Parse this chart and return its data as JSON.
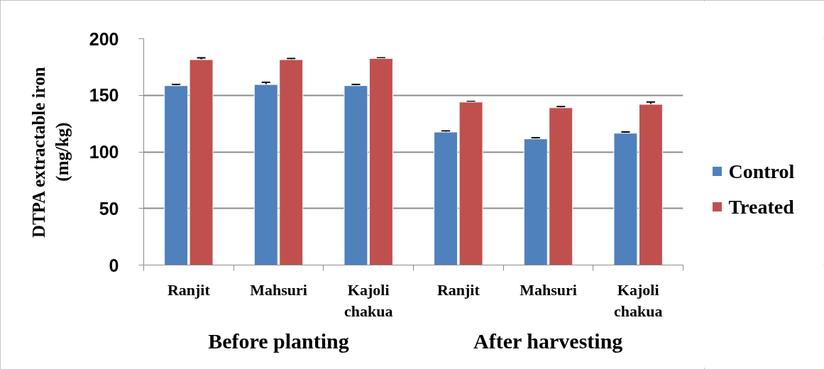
{
  "chart_data": {
    "type": "bar",
    "ylabel": "DTPA extractable iron (mg/kg)",
    "categories": [
      "Ranjit",
      "Mahsuri",
      "Kajoli chakua",
      "Ranjit",
      "Mahsuri",
      "Kajoli chakua"
    ],
    "series": [
      {
        "name": "Control",
        "color": "#4f81bd",
        "values": [
          158.5,
          159.5,
          158.5,
          117.5,
          111.5,
          116.5
        ],
        "errors": [
          1,
          2,
          1,
          1,
          1,
          1
        ]
      },
      {
        "name": "Treated",
        "color": "#c0504d",
        "values": [
          181.5,
          181.5,
          182.5,
          144,
          139,
          142
        ],
        "errors": [
          1.5,
          1,
          0.5,
          0.5,
          1,
          2
        ]
      }
    ],
    "ylim": [
      0,
      200
    ],
    "yticks": [
      0,
      50,
      100,
      150,
      200
    ],
    "grid": "y",
    "legend": "right",
    "annotations": [
      "Before planting",
      "After harvesting"
    ]
  }
}
